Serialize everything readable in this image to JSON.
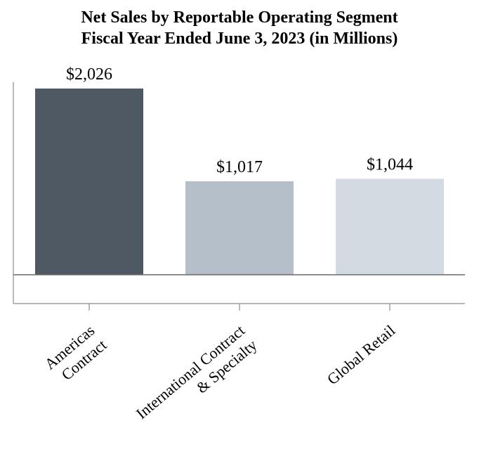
{
  "chart_data": {
    "type": "bar",
    "title": [
      "Net Sales by Reportable Operating Segment",
      "Fiscal Year Ended June 3, 2023 (in Millions)"
    ],
    "xlabel": "",
    "ylabel": "",
    "categories": [
      [
        "Americas",
        "Contract"
      ],
      [
        "International Contract",
        "& Specialty"
      ],
      [
        "Global Retail"
      ]
    ],
    "values": [
      2026,
      1017,
      1044
    ],
    "value_labels": [
      "$2,026",
      "$1,017",
      "$1,044"
    ],
    "colors": [
      "#4e5964",
      "#b5bfc9",
      "#d3dae1"
    ],
    "axis_color": "#8c8c8c",
    "ylim": [
      0,
      2026
    ],
    "grid": false,
    "legend": "none"
  }
}
